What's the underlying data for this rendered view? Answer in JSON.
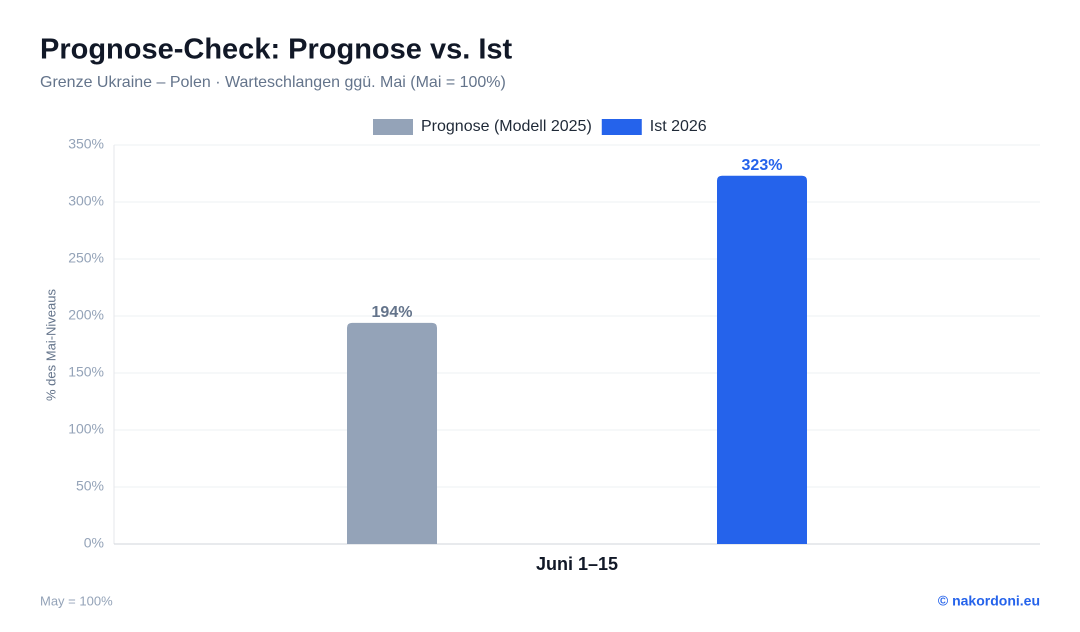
{
  "chart_data": {
    "type": "bar",
    "title": "Prognose-Check: Prognose vs. Ist",
    "subtitle": "Grenze Ukraine – Polen · Warteschlangen ggü. Mai (Mai = 100%)",
    "y_label": "% des Mai-Niveaus",
    "categories": [
      "Juni 1–15"
    ],
    "series": [
      {
        "name": "Prognose (Modell 2025)",
        "color": "#94a3b8",
        "label_color": "#64748b",
        "values": [
          194
        ],
        "value_labels": [
          "194%"
        ]
      },
      {
        "name": "Ist 2026",
        "color": "#2563eb",
        "label_color": "#2563eb",
        "values": [
          323
        ],
        "value_labels": [
          "323%"
        ]
      }
    ],
    "ylim": [
      0,
      350
    ],
    "yticks": [
      {
        "value": 0,
        "label": "0%"
      },
      {
        "value": 50,
        "label": "50%"
      },
      {
        "value": 100,
        "label": "100%"
      },
      {
        "value": 150,
        "label": "150%"
      },
      {
        "value": 200,
        "label": "200%"
      },
      {
        "value": 250,
        "label": "250%"
      },
      {
        "value": 300,
        "label": "300%"
      },
      {
        "value": 350,
        "label": "350%"
      }
    ],
    "grid": true,
    "legend": "top",
    "footer_note": "May = 100%",
    "source": "© nakordoni.eu"
  }
}
